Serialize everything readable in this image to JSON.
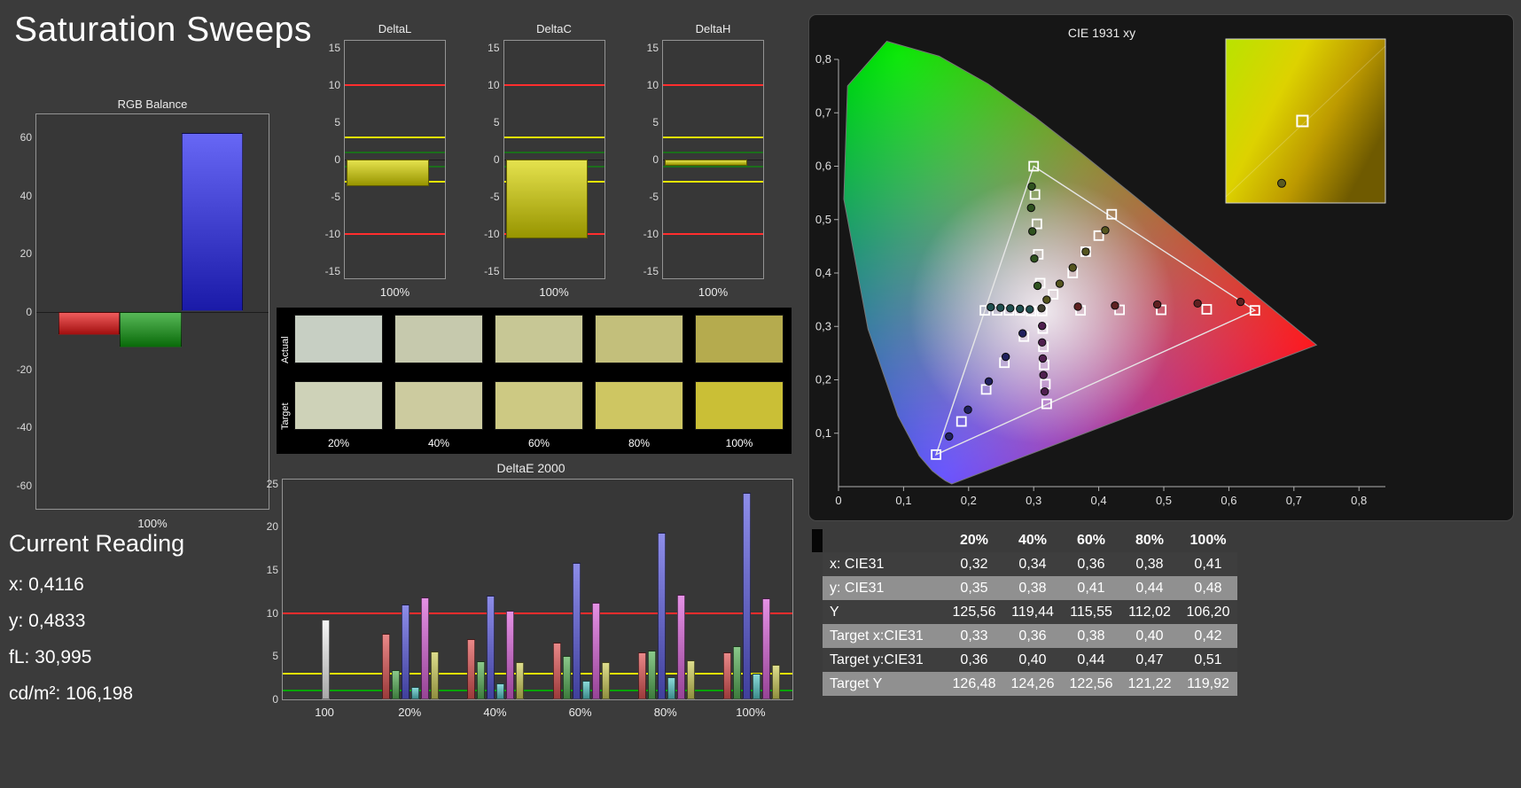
{
  "page": {
    "title": "Saturation Sweeps"
  },
  "current_reading": {
    "title": "Current Reading",
    "lines": [
      "x: 0,4116",
      "y: 0,4833",
      "fL: 30,995",
      "cd/m²: 106,198"
    ]
  },
  "rgb_balance": {
    "title": "RGB Balance",
    "xlabel": "100%",
    "ylim": [
      -68,
      68
    ],
    "yticks": [
      60,
      40,
      20,
      0,
      -20,
      -40,
      -60
    ],
    "bars": [
      {
        "name": "red",
        "value": -8,
        "color": "#e81515"
      },
      {
        "name": "green",
        "value": -12.5,
        "color": "#0f9a0f"
      },
      {
        "name": "blue",
        "value": 61.5,
        "color": "#2525f0"
      }
    ]
  },
  "delta_small_charts": {
    "common": {
      "ylim": [
        -16,
        16
      ],
      "yticks": [
        15,
        10,
        5,
        0,
        -5,
        -10,
        -15
      ],
      "xlabel": "100%",
      "bar_color": "#d9d500",
      "ref_lines": [
        {
          "y": 10,
          "color": "#ff2d2d",
          "w": 2
        },
        {
          "y": 3,
          "color": "#e6e600",
          "w": 2
        },
        {
          "y": 1,
          "color": "#00a400",
          "w": 1
        },
        {
          "y": -1,
          "color": "#00a400",
          "w": 1
        },
        {
          "y": -3,
          "color": "#e6e600",
          "w": 2
        },
        {
          "y": -10,
          "color": "#ff2d2d",
          "w": 2
        }
      ]
    },
    "charts": [
      {
        "title": "DeltaL",
        "value": -3.6
      },
      {
        "title": "DeltaC",
        "value": -10.6
      },
      {
        "title": "DeltaH",
        "value": -0.8
      }
    ]
  },
  "swatches": {
    "col_labels": [
      "20%",
      "40%",
      "60%",
      "80%",
      "100%"
    ],
    "rows": [
      {
        "label": "Actual",
        "colors": [
          "#c7cfc3",
          "#c6c9ad",
          "#c7c795",
          "#c3bf7b",
          "#b5ab4e"
        ]
      },
      {
        "label": "Target",
        "colors": [
          "#ced2b8",
          "#cccb9f",
          "#cdc983",
          "#cec662",
          "#cabf36"
        ]
      }
    ]
  },
  "deltae": {
    "title": "DeltaE 2000",
    "ylim": [
      0,
      25.5
    ],
    "yticks": [
      25,
      20,
      15,
      10,
      5,
      0
    ],
    "ref_lines": [
      {
        "y": 10,
        "color": "#ff2d2d",
        "w": 2
      },
      {
        "y": 3,
        "color": "#e6e600",
        "w": 2
      },
      {
        "y": 1,
        "color": "#00a400",
        "w": 2
      }
    ],
    "series_order": [
      "red",
      "green",
      "blue",
      "cyan",
      "magenta",
      "yellow",
      "white"
    ],
    "colors": [
      "#e05555",
      "#58b058",
      "#5b5be0",
      "#58c8c8",
      "#d862d8",
      "#cfcf5a",
      "#f0f0f0"
    ],
    "groups": [
      {
        "label": "100",
        "values": [
          9.3
        ]
      },
      {
        "label": "20%",
        "values": [
          7.6,
          3.4,
          11.0,
          1.4,
          11.8,
          5.6
        ]
      },
      {
        "label": "40%",
        "values": [
          7.0,
          4.4,
          12.0,
          1.9,
          10.3,
          4.3
        ]
      },
      {
        "label": "60%",
        "values": [
          6.6,
          5.0,
          15.8,
          2.2,
          11.2,
          4.3
        ]
      },
      {
        "label": "80%",
        "values": [
          5.4,
          5.7,
          19.3,
          2.6,
          12.1,
          4.5
        ]
      },
      {
        "label": "100%",
        "values": [
          5.4,
          6.2,
          24.0,
          3.0,
          11.7,
          4.0
        ]
      }
    ]
  },
  "cie": {
    "title": "CIE 1931 xy",
    "xticks": [
      "0",
      "0,1",
      "0,2",
      "0,3",
      "0,4",
      "0,5",
      "0,6",
      "0,7",
      "0,8"
    ],
    "yticks": [
      "0",
      "0,1",
      "0,2",
      "0,3",
      "0,4",
      "0,5",
      "0,6",
      "0,7",
      "0,8"
    ],
    "gamut_triangle": [
      [
        0.64,
        0.33
      ],
      [
        0.3,
        0.6
      ],
      [
        0.15,
        0.06
      ]
    ],
    "sweeps": [
      {
        "name": "white",
        "dot_color": "#3f3f2f",
        "targets": [
          [
            0.313,
            0.329
          ]
        ],
        "points": [
          [
            0.312,
            0.334
          ]
        ]
      },
      {
        "name": "red",
        "dot_color": "#5e2020",
        "targets": [
          [
            0.372,
            0.33
          ],
          [
            0.432,
            0.331
          ],
          [
            0.496,
            0.331
          ],
          [
            0.566,
            0.332
          ],
          [
            0.64,
            0.33
          ]
        ],
        "points": [
          [
            0.368,
            0.337
          ],
          [
            0.425,
            0.339
          ],
          [
            0.49,
            0.341
          ],
          [
            0.552,
            0.343
          ],
          [
            0.618,
            0.346
          ]
        ]
      },
      {
        "name": "green",
        "dot_color": "#2f521f",
        "targets": [
          [
            0.31,
            0.381
          ],
          [
            0.307,
            0.435
          ],
          [
            0.305,
            0.492
          ],
          [
            0.302,
            0.547
          ],
          [
            0.3,
            0.6
          ]
        ],
        "points": [
          [
            0.306,
            0.376
          ],
          [
            0.301,
            0.427
          ],
          [
            0.298,
            0.478
          ],
          [
            0.296,
            0.522
          ],
          [
            0.297,
            0.562
          ]
        ]
      },
      {
        "name": "blue",
        "dot_color": "#20205e",
        "targets": [
          [
            0.285,
            0.281
          ],
          [
            0.255,
            0.232
          ],
          [
            0.227,
            0.182
          ],
          [
            0.189,
            0.122
          ],
          [
            0.15,
            0.06
          ]
        ],
        "points": [
          [
            0.283,
            0.287
          ],
          [
            0.257,
            0.243
          ],
          [
            0.231,
            0.197
          ],
          [
            0.199,
            0.144
          ],
          [
            0.17,
            0.094
          ]
        ]
      },
      {
        "name": "cyan",
        "dot_color": "#1f4f4f",
        "targets": [
          [
            0.296,
            0.329
          ],
          [
            0.279,
            0.33
          ],
          [
            0.262,
            0.33
          ],
          [
            0.244,
            0.33
          ],
          [
            0.225,
            0.33
          ]
        ],
        "points": [
          [
            0.294,
            0.332
          ],
          [
            0.279,
            0.333
          ],
          [
            0.264,
            0.334
          ],
          [
            0.249,
            0.335
          ],
          [
            0.234,
            0.336
          ]
        ]
      },
      {
        "name": "magenta",
        "dot_color": "#4f1f4f",
        "targets": [
          [
            0.314,
            0.296
          ],
          [
            0.315,
            0.262
          ],
          [
            0.316,
            0.228
          ],
          [
            0.318,
            0.192
          ],
          [
            0.32,
            0.155
          ]
        ],
        "points": [
          [
            0.313,
            0.301
          ],
          [
            0.313,
            0.27
          ],
          [
            0.314,
            0.24
          ],
          [
            0.315,
            0.209
          ],
          [
            0.317,
            0.178
          ]
        ]
      },
      {
        "name": "yellow",
        "dot_color": "#55551f",
        "targets": [
          [
            0.33,
            0.36
          ],
          [
            0.36,
            0.4
          ],
          [
            0.38,
            0.44
          ],
          [
            0.4,
            0.47
          ],
          [
            0.42,
            0.51
          ]
        ],
        "points": [
          [
            0.32,
            0.35
          ],
          [
            0.34,
            0.38
          ],
          [
            0.36,
            0.41
          ],
          [
            0.38,
            0.44
          ],
          [
            0.41,
            0.48
          ]
        ]
      }
    ],
    "inset": {
      "square": [
        0.48,
        0.5
      ],
      "dot": [
        0.35,
        0.88
      ],
      "dot_color": "#5a5a20"
    }
  },
  "table": {
    "header": [
      "",
      "20%",
      "40%",
      "60%",
      "80%",
      "100%"
    ],
    "rows": [
      {
        "label": "x: CIE31",
        "values": [
          "0,32",
          "0,34",
          "0,36",
          "0,38",
          "0,41"
        ]
      },
      {
        "label": "y: CIE31",
        "values": [
          "0,35",
          "0,38",
          "0,41",
          "0,44",
          "0,48"
        ]
      },
      {
        "label": "Y",
        "values": [
          "125,56",
          "119,44",
          "115,55",
          "112,02",
          "106,20"
        ]
      },
      {
        "label": "Target x:CIE31",
        "values": [
          "0,33",
          "0,36",
          "0,38",
          "0,40",
          "0,42"
        ]
      },
      {
        "label": "Target y:CIE31",
        "values": [
          "0,36",
          "0,40",
          "0,44",
          "0,47",
          "0,51"
        ]
      },
      {
        "label": "Target Y",
        "values": [
          "126,48",
          "124,26",
          "122,56",
          "121,22",
          "119,92"
        ]
      }
    ]
  }
}
